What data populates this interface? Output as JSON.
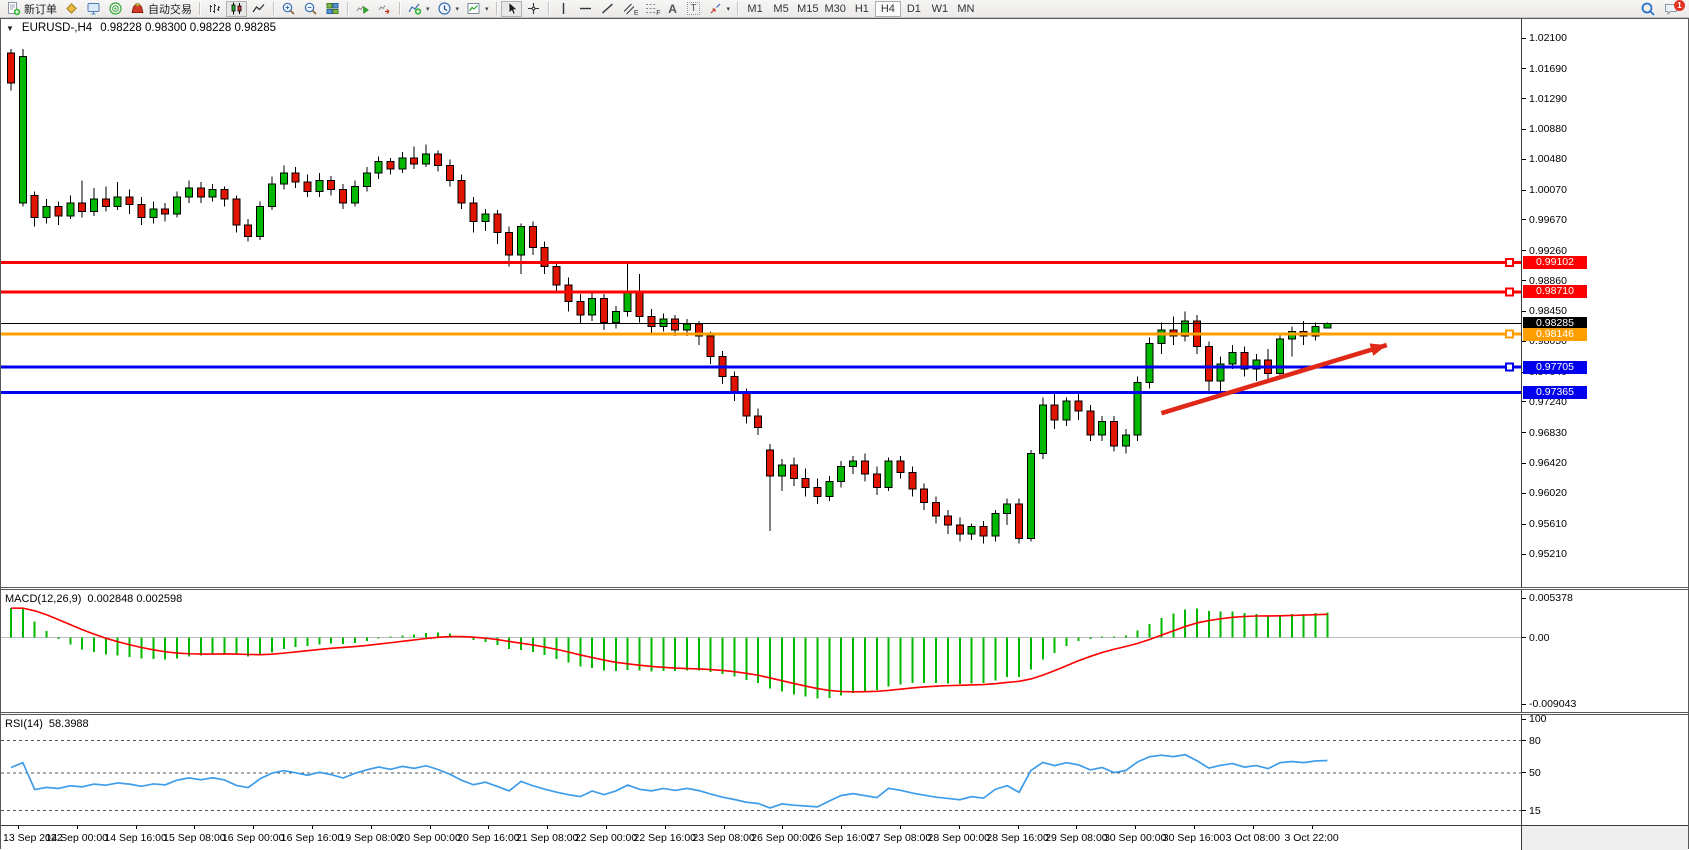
{
  "icons": {
    "collapse": "▼",
    "caret": "▾"
  },
  "toolbar": {
    "new_order": "新订单",
    "auto_trading": "自动交易",
    "channel_tool": "E",
    "fibo_tool": "F",
    "text_tool": "A",
    "label_tool": "T",
    "timeframes": [
      "M1",
      "M5",
      "M15",
      "M30",
      "H1",
      "H4",
      "D1",
      "W1",
      "MN"
    ],
    "active_timeframe": "H4",
    "notification_count": "1"
  },
  "chart": {
    "title_symbol": "EURUSD-,H4",
    "title_ohlc": "0.98228 0.98300 0.98228 0.98285"
  },
  "macd_panel": {
    "label": "MACD(12,26,9)",
    "values": "0.002848 0.002598"
  },
  "rsi_panel": {
    "label": "RSI(14)",
    "value": "58.3988"
  },
  "chart_data": [
    {
      "type": "candlestick",
      "symbol": "EURUSD-",
      "timeframe": "H4",
      "current_ohlc": {
        "open": 0.98228,
        "high": 0.983,
        "low": 0.98228,
        "close": 0.98285
      },
      "ylim": [
        0.9521,
        1.021
      ],
      "y_ticks": [
        1.021,
        1.0169,
        1.0129,
        1.0088,
        1.0048,
        1.0007,
        0.9967,
        0.9926,
        0.9886,
        0.9845,
        0.9805,
        0.9764,
        0.9724,
        0.9683,
        0.9642,
        0.9602,
        0.9561,
        0.9521
      ],
      "x_labels": [
        "13 Sep 2022",
        "14 Sep 00:00",
        "14 Sep 16:00",
        "15 Sep 08:00",
        "16 Sep 00:00",
        "16 Sep 16:00",
        "19 Sep 08:00",
        "20 Sep 00:00",
        "20 Sep 16:00",
        "21 Sep 08:00",
        "22 Sep 00:00",
        "22 Sep 16:00",
        "23 Sep 08:00",
        "26 Sep 00:00",
        "26 Sep 16:00",
        "27 Sep 08:00",
        "28 Sep 00:00",
        "28 Sep 16:00",
        "29 Sep 08:00",
        "30 Sep 00:00",
        "30 Sep 16:00",
        "3 Oct 08:00",
        "3 Oct 22:00"
      ],
      "up_color": "#00b800",
      "down_color": "#e01400",
      "levels": [
        {
          "price": 0.99102,
          "color": "#ff0000",
          "width": 3,
          "marker": true
        },
        {
          "price": 0.9871,
          "color": "#ff0000",
          "width": 3,
          "marker": true
        },
        {
          "price": 0.98285,
          "color": "#000000",
          "width": 1,
          "marker": false
        },
        {
          "price": 0.98146,
          "color": "#ff9e00",
          "width": 3,
          "marker": true
        },
        {
          "price": 0.97705,
          "color": "#0000ee",
          "width": 3,
          "marker": true
        },
        {
          "price": 0.97365,
          "color": "#0000ee",
          "width": 3,
          "marker": false
        }
      ],
      "annotation_arrow": {
        "color": "#e02818",
        "x1_index": 97,
        "y1_price": 0.9709,
        "x2_index": 116,
        "y2_price": 0.98
      },
      "candles": [
        [
          1.019,
          1.0195,
          1.014,
          1.015
        ],
        [
          0.999,
          1.0195,
          0.9985,
          1.0185
        ],
        [
          1.0,
          1.0005,
          0.9958,
          0.997
        ],
        [
          0.997,
          0.9995,
          0.9962,
          0.9985
        ],
        [
          0.9985,
          0.9992,
          0.996,
          0.9972
        ],
        [
          0.9972,
          1.0,
          0.9968,
          0.999
        ],
        [
          0.999,
          1.002,
          0.997,
          0.9978
        ],
        [
          0.9978,
          1.001,
          0.9972,
          0.9995
        ],
        [
          0.9995,
          1.0012,
          0.9978,
          0.9985
        ],
        [
          0.9985,
          1.0018,
          0.998,
          0.9998
        ],
        [
          0.9998,
          1.0008,
          0.9975,
          0.9988
        ],
        [
          0.9988,
          0.9998,
          0.996,
          0.997
        ],
        [
          0.997,
          0.9992,
          0.9962,
          0.9982
        ],
        [
          0.9982,
          0.999,
          0.9965,
          0.9975
        ],
        [
          0.9975,
          1.0005,
          0.997,
          0.9998
        ],
        [
          0.9998,
          1.002,
          0.999,
          1.001
        ],
        [
          1.001,
          1.0018,
          0.999,
          0.9998
        ],
        [
          0.9998,
          1.0015,
          0.9992,
          1.0008
        ],
        [
          1.0008,
          1.0012,
          0.9985,
          0.9995
        ],
        [
          0.9995,
          1.0,
          0.995,
          0.996
        ],
        [
          0.996,
          0.9968,
          0.9938,
          0.9945
        ],
        [
          0.9945,
          0.9992,
          0.994,
          0.9985
        ],
        [
          0.9985,
          1.0025,
          0.998,
          1.0015
        ],
        [
          1.0015,
          1.004,
          1.0008,
          1.003
        ],
        [
          1.003,
          1.0038,
          1.001,
          1.0018
        ],
        [
          1.0018,
          1.0028,
          0.9998,
          1.0005
        ],
        [
          1.0005,
          1.003,
          0.9998,
          1.002
        ],
        [
          1.002,
          1.0026,
          1.0,
          1.0008
        ],
        [
          1.0008,
          1.0015,
          0.9982,
          0.999
        ],
        [
          0.999,
          1.002,
          0.9985,
          1.0012
        ],
        [
          1.0012,
          1.0038,
          1.0005,
          1.003
        ],
        [
          1.003,
          1.0052,
          1.0022,
          1.0045
        ],
        [
          1.0045,
          1.005,
          1.0028,
          1.0035
        ],
        [
          1.0035,
          1.0058,
          1.003,
          1.005
        ],
        [
          1.005,
          1.0065,
          1.0035,
          1.0042
        ],
        [
          1.0042,
          1.0068,
          1.0038,
          1.0055
        ],
        [
          1.0055,
          1.006,
          1.0032,
          1.004
        ],
        [
          1.004,
          1.0048,
          1.0012,
          1.002
        ],
        [
          1.002,
          1.0028,
          0.9982,
          0.999
        ],
        [
          0.999,
          0.9998,
          0.995,
          0.9965
        ],
        [
          0.9965,
          0.9982,
          0.9952,
          0.9975
        ],
        [
          0.9975,
          0.998,
          0.9935,
          0.995
        ],
        [
          0.995,
          0.9958,
          0.9905,
          0.992
        ],
        [
          0.992,
          0.9962,
          0.9895,
          0.9958
        ],
        [
          0.9958,
          0.9965,
          0.992,
          0.993
        ],
        [
          0.993,
          0.9938,
          0.9895,
          0.9905
        ],
        [
          0.9905,
          0.9912,
          0.987,
          0.988
        ],
        [
          0.988,
          0.989,
          0.9845,
          0.9858
        ],
        [
          0.9858,
          0.9868,
          0.9828,
          0.984
        ],
        [
          0.984,
          0.987,
          0.9832,
          0.9862
        ],
        [
          0.9862,
          0.9868,
          0.982,
          0.983
        ],
        [
          0.983,
          0.9852,
          0.9822,
          0.9845
        ],
        [
          0.9845,
          0.9912,
          0.9838,
          0.987
        ],
        [
          0.987,
          0.9895,
          0.983,
          0.9838
        ],
        [
          0.9838,
          0.9848,
          0.9815,
          0.9825
        ],
        [
          0.9825,
          0.9842,
          0.9818,
          0.9835
        ],
        [
          0.9835,
          0.984,
          0.9812,
          0.982
        ],
        [
          0.982,
          0.9835,
          0.9812,
          0.9828
        ],
        [
          0.9828,
          0.9832,
          0.98,
          0.9812
        ],
        [
          0.9812,
          0.9818,
          0.9775,
          0.9785
        ],
        [
          0.9785,
          0.9792,
          0.9748,
          0.9758
        ],
        [
          0.9758,
          0.9765,
          0.9725,
          0.9735
        ],
        [
          0.9735,
          0.9742,
          0.9695,
          0.9705
        ],
        [
          0.9705,
          0.9715,
          0.968,
          0.969
        ],
        [
          0.966,
          0.9668,
          0.9552,
          0.9625
        ],
        [
          0.9625,
          0.9648,
          0.9605,
          0.964
        ],
        [
          0.964,
          0.965,
          0.9612,
          0.9622
        ],
        [
          0.9622,
          0.9635,
          0.9598,
          0.961
        ],
        [
          0.961,
          0.9622,
          0.9588,
          0.9598
        ],
        [
          0.9598,
          0.9625,
          0.9592,
          0.9618
        ],
        [
          0.9618,
          0.9645,
          0.961,
          0.9638
        ],
        [
          0.9638,
          0.9652,
          0.9628,
          0.9645
        ],
        [
          0.9645,
          0.9655,
          0.9618,
          0.9628
        ],
        [
          0.9628,
          0.9638,
          0.96,
          0.961
        ],
        [
          0.961,
          0.965,
          0.9605,
          0.9645
        ],
        [
          0.9645,
          0.9652,
          0.9622,
          0.963
        ],
        [
          0.963,
          0.9638,
          0.9598,
          0.9608
        ],
        [
          0.9608,
          0.9615,
          0.958,
          0.959
        ],
        [
          0.959,
          0.9598,
          0.9562,
          0.9572
        ],
        [
          0.9572,
          0.958,
          0.9548,
          0.956
        ],
        [
          0.956,
          0.957,
          0.9538,
          0.9548
        ],
        [
          0.9548,
          0.9562,
          0.954,
          0.9558
        ],
        [
          0.9558,
          0.9565,
          0.9535,
          0.9545
        ],
        [
          0.9545,
          0.958,
          0.9538,
          0.9575
        ],
        [
          0.9575,
          0.9595,
          0.956,
          0.9588
        ],
        [
          0.9588,
          0.9595,
          0.9535,
          0.9542
        ],
        [
          0.9542,
          0.966,
          0.9538,
          0.9655
        ],
        [
          0.9655,
          0.973,
          0.9648,
          0.972
        ],
        [
          0.972,
          0.9738,
          0.9688,
          0.97
        ],
        [
          0.97,
          0.973,
          0.9692,
          0.9725
        ],
        [
          0.9725,
          0.9735,
          0.97,
          0.9712
        ],
        [
          0.9712,
          0.972,
          0.9672,
          0.968
        ],
        [
          0.968,
          0.9705,
          0.9672,
          0.9698
        ],
        [
          0.9698,
          0.9705,
          0.9658,
          0.9665
        ],
        [
          0.9665,
          0.9688,
          0.9655,
          0.968
        ],
        [
          0.968,
          0.9758,
          0.9672,
          0.975
        ],
        [
          0.975,
          0.981,
          0.9742,
          0.9802
        ],
        [
          0.9802,
          0.983,
          0.9788,
          0.982
        ],
        [
          0.982,
          0.9838,
          0.98,
          0.9812
        ],
        [
          0.9812,
          0.9845,
          0.9805,
          0.9832
        ],
        [
          0.9832,
          0.984,
          0.9788,
          0.9798
        ],
        [
          0.9798,
          0.9805,
          0.9738,
          0.9752
        ],
        [
          0.9752,
          0.9785,
          0.9735,
          0.9775
        ],
        [
          0.9775,
          0.98,
          0.9768,
          0.979
        ],
        [
          0.979,
          0.9798,
          0.9758,
          0.9768
        ],
        [
          0.9768,
          0.9788,
          0.9752,
          0.978
        ],
        [
          0.978,
          0.9795,
          0.9755,
          0.9762
        ],
        [
          0.9762,
          0.9815,
          0.9758,
          0.9808
        ],
        [
          0.9808,
          0.9825,
          0.9785,
          0.9818
        ],
        [
          0.9818,
          0.9832,
          0.98,
          0.9812
        ],
        [
          0.9812,
          0.983,
          0.9806,
          0.9825
        ],
        [
          0.98228,
          0.983,
          0.98228,
          0.98285
        ]
      ]
    },
    {
      "type": "bar",
      "name": "MACD",
      "params": {
        "fast": 12,
        "slow": 26,
        "signal": 9
      },
      "display_values": [
        0.002848,
        0.002598
      ],
      "y_ticks": [
        "0.005378",
        "0.00",
        "-0.009043"
      ],
      "ylim": [
        -0.009043,
        0.005378
      ],
      "histogram_color": "#00b800",
      "signal_color": "#ff0000",
      "source": "computed from candle closes: EMA12-EMA26 histogram, EMA9 signal line"
    },
    {
      "type": "line",
      "name": "RSI",
      "params": {
        "period": 14
      },
      "current_value": 58.3988,
      "y_ticks": [
        "100",
        "80",
        "50",
        "15"
      ],
      "level_lines": [
        80,
        50,
        15
      ],
      "ylim": [
        0,
        100
      ],
      "line_color": "#3f9ce8",
      "source": "computed from candle closes: Wilder RSI(14)"
    }
  ]
}
